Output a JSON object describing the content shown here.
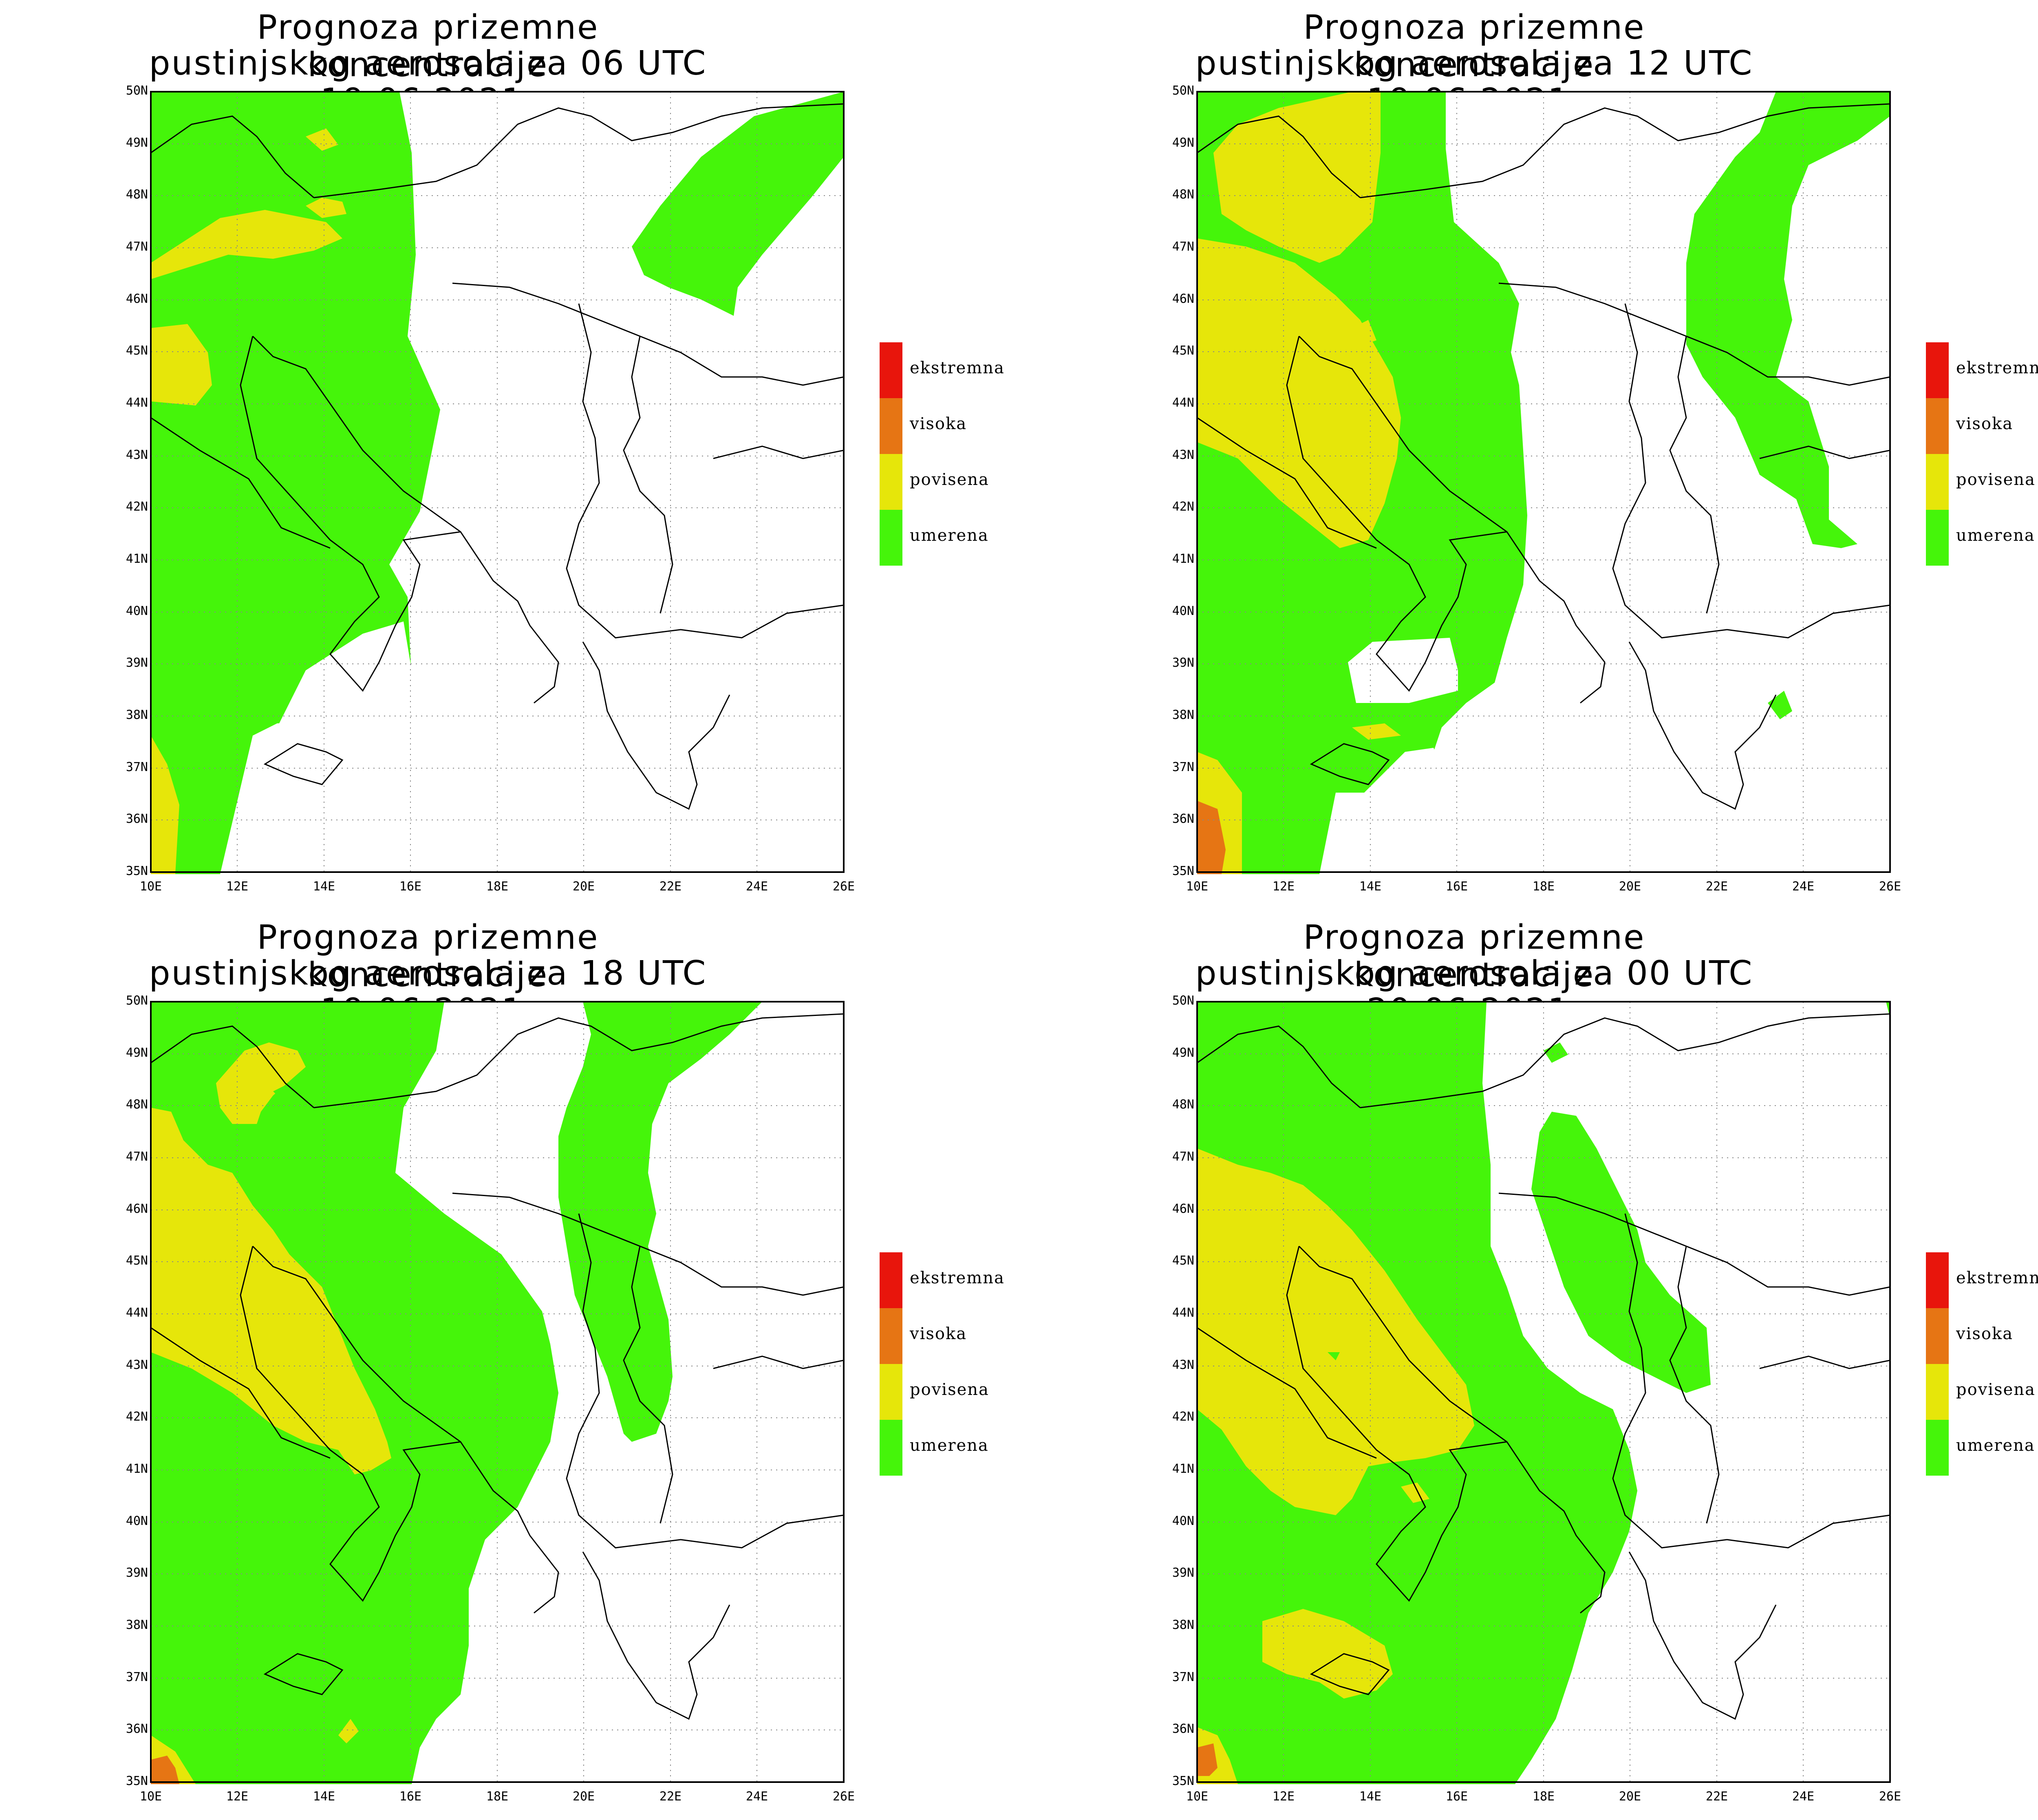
{
  "title_line1": "Prognoza prizemne koncentracije",
  "panels": [
    {
      "title_line2": "pustinjskog aerosola za 06 UTC 19.06.2021."
    },
    {
      "title_line2": "pustinjskog aerosola za 12 UTC 19.06.2021."
    },
    {
      "title_line2": "pustinjskog aerosola za 18 UTC 19.06.2021."
    },
    {
      "title_line2": "pustinjskog aerosola za 00 UTC 20.06.2021."
    }
  ],
  "lat_labels": [
    "50N",
    "49N",
    "48N",
    "47N",
    "46N",
    "45N",
    "44N",
    "43N",
    "42N",
    "41N",
    "40N",
    "39N",
    "38N",
    "37N",
    "36N",
    "35N"
  ],
  "lon_labels": [
    "10E",
    "12E",
    "14E",
    "16E",
    "18E",
    "20E",
    "22E",
    "24E",
    "26E"
  ],
  "legend": [
    {
      "label": "ekstremna",
      "color": "#e8150c"
    },
    {
      "label": "visoka",
      "color": "#e67514"
    },
    {
      "label": "povisena",
      "color": "#e6e60a"
    },
    {
      "label": "umerena",
      "color": "#45f50a"
    }
  ],
  "colors": {
    "umerena": "#45f50a",
    "povisena": "#e6e60a",
    "visoka": "#e67514",
    "ekstremna": "#e8150c"
  }
}
